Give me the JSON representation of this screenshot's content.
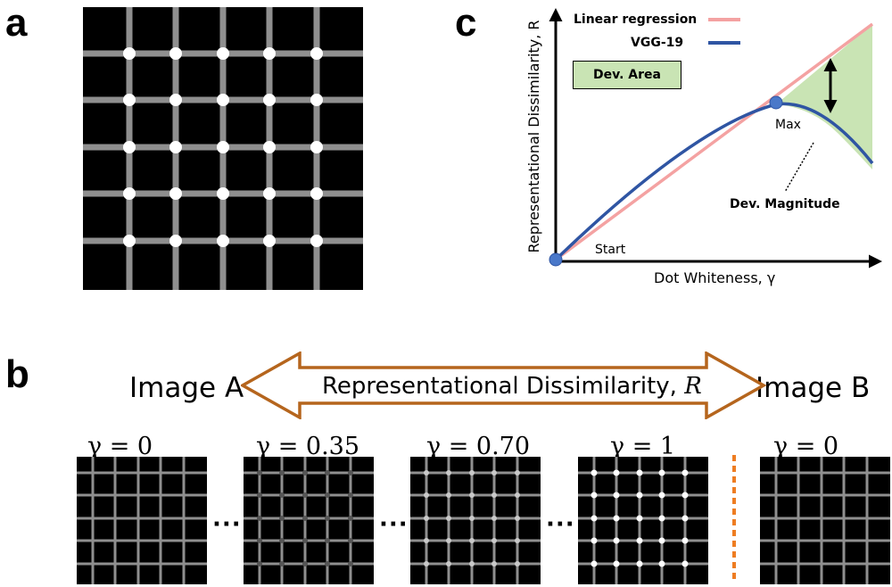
{
  "panel_a": {
    "label": "a"
  },
  "panel_b": {
    "label": "b",
    "image_a_label": "Image A",
    "image_b_label": "Image B",
    "arrow_text": "Representational Dissimilarity, ",
    "arrow_var": "R",
    "gamma_labels": [
      "γ = 0",
      "γ = 0.35",
      "γ = 0.70",
      "γ = 1",
      "γ = 0"
    ],
    "ellipsis": "···"
  },
  "panel_c": {
    "label": "c",
    "legend": {
      "linear": "Linear regression",
      "vgg": "VGG-19",
      "dev_area": "Dev. Area"
    },
    "annotations": {
      "max": "Max",
      "start": "Start",
      "dev_magnitude": "Dev. Magnitude"
    },
    "xlabel": "Dot Whiteness, γ",
    "ylabel": "Representational Dissimilarity, R"
  },
  "colors": {
    "linear": "#f4a2a2",
    "vgg": "#2f55a3",
    "dev_area": "#c9e4b4",
    "dot": "#4a78c9",
    "dashed_divider": "#ee7d22",
    "arrow_outline": "#b5651d",
    "grid_line": "#8f8f8f"
  }
}
